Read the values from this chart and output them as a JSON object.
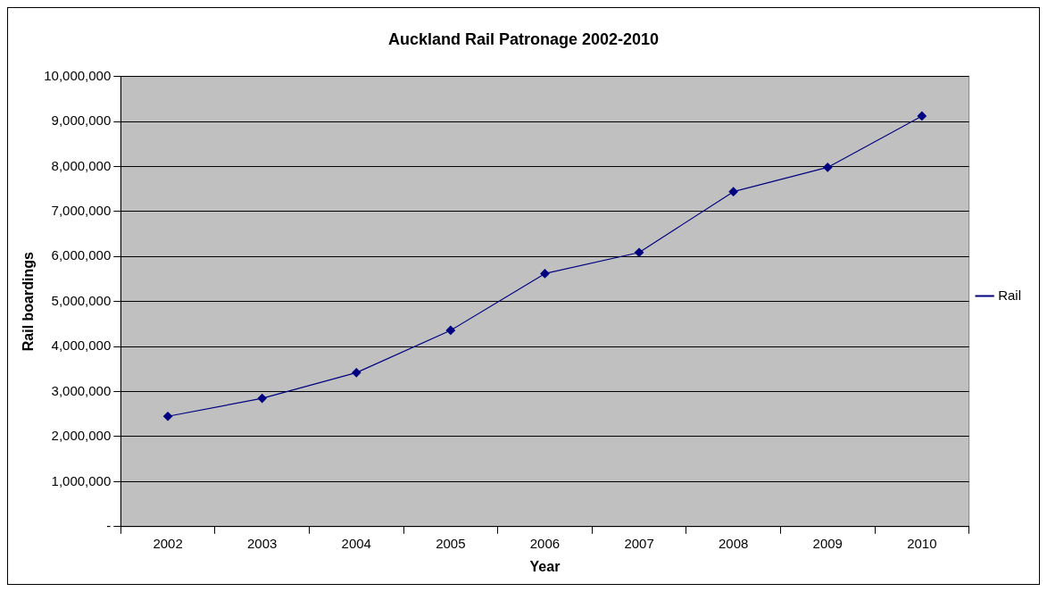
{
  "chart_data": {
    "type": "line",
    "title": "Auckland Rail Patronage 2002-2010",
    "xlabel": "Year",
    "ylabel": "Rail boardings",
    "categories": [
      "2002",
      "2003",
      "2004",
      "2005",
      "2006",
      "2007",
      "2008",
      "2009",
      "2010"
    ],
    "series": [
      {
        "name": "Rail",
        "color": "#000080",
        "values": [
          2450000,
          2850000,
          3420000,
          4360000,
          5620000,
          6090000,
          7440000,
          7980000,
          9120000
        ]
      }
    ],
    "ylim": [
      0,
      10000000
    ],
    "yticks": [
      {
        "value": 0,
        "label": "-"
      },
      {
        "value": 1000000,
        "label": "1,000,000"
      },
      {
        "value": 2000000,
        "label": "2,000,000"
      },
      {
        "value": 3000000,
        "label": "3,000,000"
      },
      {
        "value": 4000000,
        "label": "4,000,000"
      },
      {
        "value": 5000000,
        "label": "5,000,000"
      },
      {
        "value": 6000000,
        "label": "6,000,000"
      },
      {
        "value": 7000000,
        "label": "7,000,000"
      },
      {
        "value": 8000000,
        "label": "8,000,000"
      },
      {
        "value": 9000000,
        "label": "9,000,000"
      },
      {
        "value": 10000000,
        "label": "10,000,000"
      }
    ],
    "grid": "y",
    "legend": "right",
    "marker": "diamond",
    "line_style": "solid"
  }
}
